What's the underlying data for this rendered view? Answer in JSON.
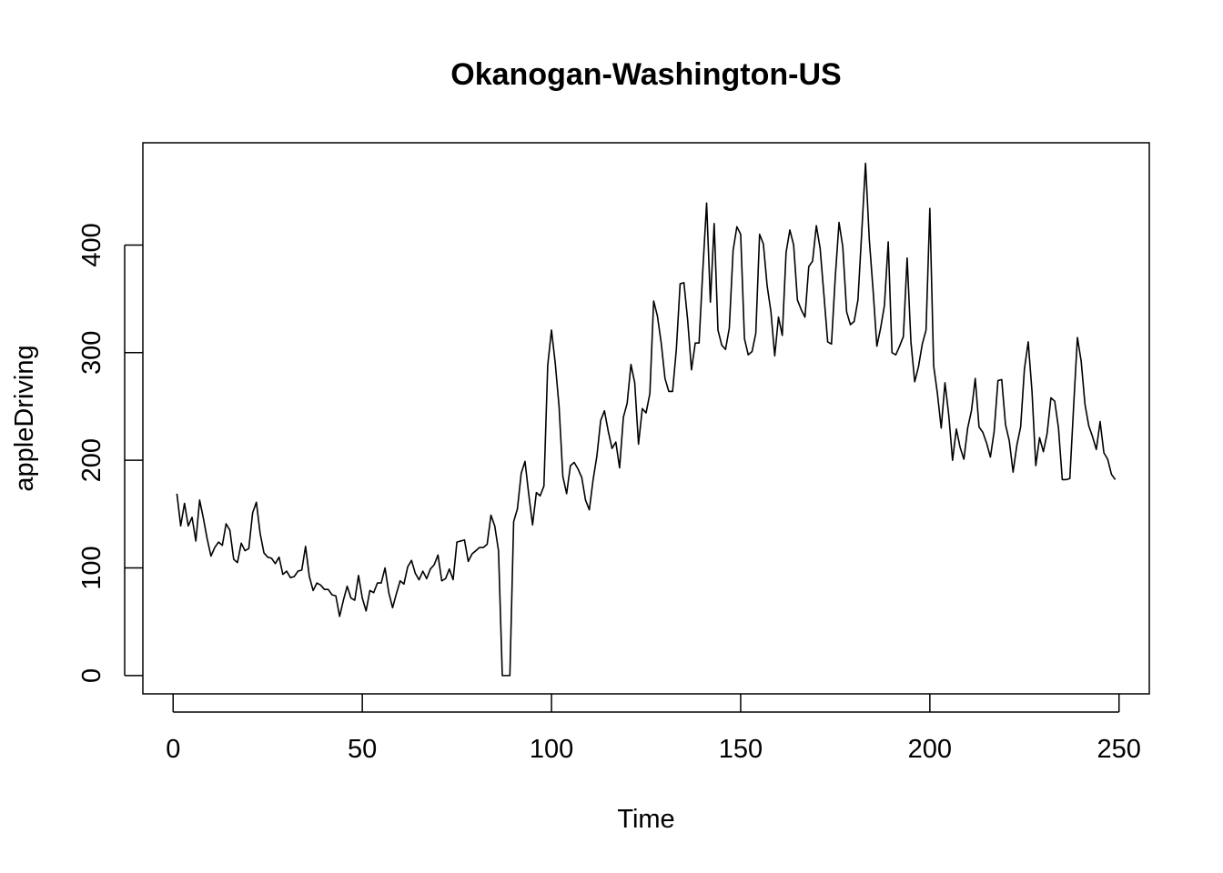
{
  "chart_data": {
    "type": "line",
    "title": "Okanogan-Washington-US",
    "xlabel": "Time",
    "ylabel": "appleDriving",
    "xlim": [
      -8,
      258
    ],
    "ylim": [
      -17,
      495
    ],
    "xticks": [
      0,
      50,
      100,
      150,
      200,
      250
    ],
    "yticks": [
      0,
      100,
      200,
      300,
      400
    ],
    "grid": false,
    "legend": "none",
    "series": [
      {
        "x_start": 1,
        "values": [
          169,
          139,
          160,
          139,
          147,
          125,
          163,
          146,
          127,
          111,
          119,
          124,
          121,
          141,
          135,
          108,
          105,
          123,
          116,
          118,
          151,
          161,
          132,
          114,
          110,
          109,
          104,
          110,
          94,
          97,
          91,
          92,
          97,
          98,
          120,
          92,
          79,
          86,
          84,
          80,
          80,
          75,
          74,
          55,
          70,
          83,
          72,
          70,
          93,
          72,
          60,
          79,
          77,
          86,
          86,
          100,
          77,
          63,
          76,
          88,
          85,
          101,
          107,
          95,
          89,
          97,
          90,
          99,
          103,
          112,
          88,
          90,
          99,
          89,
          124,
          125,
          126,
          106,
          113,
          116,
          119,
          119,
          122,
          149,
          139,
          116,
          0,
          0,
          0,
          143,
          155,
          188,
          199,
          168,
          140,
          170,
          167,
          176,
          288,
          321,
          290,
          250,
          185,
          169,
          195,
          198,
          192,
          184,
          163,
          154,
          182,
          204,
          237,
          246,
          227,
          211,
          217,
          193,
          240,
          253,
          289,
          272,
          215,
          248,
          244,
          262,
          348,
          334,
          309,
          276,
          264,
          264,
          303,
          364,
          365,
          330,
          284,
          309,
          309,
          377,
          439,
          347,
          420,
          321,
          307,
          303,
          323,
          395,
          417,
          410,
          313,
          298,
          301,
          318,
          410,
          401,
          362,
          338,
          297,
          333,
          316,
          393,
          414,
          400,
          349,
          340,
          333,
          380,
          385,
          418,
          397,
          354,
          310,
          308,
          370,
          421,
          398,
          338,
          326,
          329,
          349,
          412,
          476,
          405,
          358,
          306,
          323,
          344,
          403,
          300,
          298,
          306,
          315,
          388,
          310,
          273,
          287,
          308,
          321,
          434,
          288,
          262,
          230,
          272,
          242,
          200,
          229,
          212,
          201,
          230,
          246,
          276,
          231,
          226,
          216,
          203,
          227,
          274,
          275,
          233,
          218,
          189,
          214,
          231,
          285,
          310,
          264,
          195,
          221,
          208,
          225,
          258,
          255,
          230,
          182,
          182,
          183,
          250,
          314,
          292,
          252,
          232,
          222,
          210,
          236,
          207,
          201,
          187,
          182
        ]
      }
    ]
  }
}
